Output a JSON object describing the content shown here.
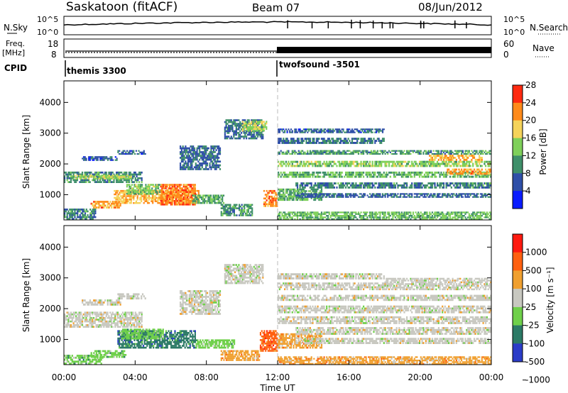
{
  "header": {
    "title": "Saskatoon (fitACF)",
    "beam": "Beam 07",
    "date": "08/Jun/2012"
  },
  "noise_panel": {
    "left_label": "N.Sky",
    "right_label": "N.Search",
    "left_ticks": [
      "10^5",
      "10^0"
    ],
    "right_ticks": [
      "10^5",
      "10^0"
    ]
  },
  "freq_panel": {
    "left_label_1": "Freq.",
    "left_label_2": "[MHz]",
    "right_label": "Nave",
    "left_ticks": [
      "18",
      "8"
    ],
    "right_ticks": [
      "60",
      "0"
    ]
  },
  "cpid_panel": {
    "label": "CPID",
    "programs": [
      "themis 3300",
      "twofsound -3501"
    ]
  },
  "colors": {
    "power": [
      "#0a1cff",
      "#2f4fa8",
      "#3f8f6a",
      "#7fd05a",
      "#f5d35a",
      "#ff8a1a",
      "#ff2a10"
    ],
    "velocity": [
      "#2b3cc8",
      "#2c7a66",
      "#6fd04a",
      "#c8c8c0",
      "#f0a030",
      "#ff6010",
      "#ff1a10"
    ]
  },
  "chart_data": [
    {
      "type": "heatmap",
      "title": "Power",
      "ylabel": "Slant Range [km]",
      "ylim": [
        180,
        4700
      ],
      "yticks": [
        "1000",
        "2000",
        "3000",
        "4000"
      ],
      "xlim": [
        0,
        24
      ],
      "colorbar_label": "Power [dB]",
      "colorbar_ticks": [
        "4",
        "8",
        "12",
        "16",
        "20",
        "24",
        "28"
      ],
      "blobs": [
        {
          "t0": 0.0,
          "t1": 4.4,
          "r0": 1380,
          "r1": 1750,
          "v": 0.32
        },
        {
          "t0": 0.5,
          "t1": 3.8,
          "r0": 1500,
          "r1": 1650,
          "v": 0.55
        },
        {
          "t0": 1.0,
          "t1": 3.0,
          "r0": 2100,
          "r1": 2250,
          "v": 0.18
        },
        {
          "t0": 3.0,
          "t1": 4.6,
          "r0": 2300,
          "r1": 2450,
          "v": 0.2
        },
        {
          "t0": 2.8,
          "t1": 7.6,
          "r0": 700,
          "r1": 1150,
          "v": 0.72
        },
        {
          "t0": 5.4,
          "t1": 7.4,
          "r0": 650,
          "r1": 1350,
          "v": 0.86
        },
        {
          "t0": 3.5,
          "t1": 5.4,
          "r0": 1000,
          "r1": 1350,
          "v": 0.5
        },
        {
          "t0": 1.5,
          "t1": 3.2,
          "r0": 550,
          "r1": 800,
          "v": 0.8
        },
        {
          "t0": 0.0,
          "t1": 1.8,
          "r0": 180,
          "r1": 550,
          "v": 0.3
        },
        {
          "t0": 7.2,
          "t1": 9.0,
          "r0": 700,
          "r1": 1000,
          "v": 0.4
        },
        {
          "t0": 8.8,
          "t1": 10.6,
          "r0": 300,
          "r1": 700,
          "v": 0.35
        },
        {
          "t0": 9.0,
          "t1": 11.2,
          "r0": 2800,
          "r1": 3450,
          "v": 0.25
        },
        {
          "t0": 10.0,
          "t1": 11.4,
          "r0": 3050,
          "r1": 3400,
          "v": 0.55
        },
        {
          "t0": 6.5,
          "t1": 8.8,
          "r0": 1800,
          "r1": 2600,
          "v": 0.22
        },
        {
          "t0": 11.2,
          "t1": 12.0,
          "r0": 600,
          "r1": 1150,
          "v": 0.85
        },
        {
          "t0": 12.0,
          "t1": 14.5,
          "r0": 800,
          "r1": 1200,
          "v": 0.4
        },
        {
          "t0": 12.0,
          "t1": 24.0,
          "r0": 1550,
          "r1": 1750,
          "v": 0.45
        },
        {
          "t0": 12.0,
          "t1": 24.0,
          "r0": 1900,
          "r1": 2100,
          "v": 0.5
        },
        {
          "t0": 12.0,
          "t1": 24.0,
          "r0": 2300,
          "r1": 2450,
          "v": 0.35
        },
        {
          "t0": 12.0,
          "t1": 18.0,
          "r0": 2650,
          "r1": 2850,
          "v": 0.25
        },
        {
          "t0": 12.0,
          "t1": 18.0,
          "r0": 3000,
          "r1": 3150,
          "v": 0.2
        },
        {
          "t0": 13.0,
          "t1": 24.0,
          "r0": 1200,
          "r1": 1400,
          "v": 0.3
        },
        {
          "t0": 13.0,
          "t1": 24.0,
          "r0": 900,
          "r1": 1050,
          "v": 0.22
        },
        {
          "t0": 20.5,
          "t1": 23.5,
          "r0": 2100,
          "r1": 2300,
          "v": 0.75
        },
        {
          "t0": 21.5,
          "t1": 24.0,
          "r0": 1650,
          "r1": 1850,
          "v": 0.8
        },
        {
          "t0": 12.0,
          "t1": 24.0,
          "r0": 180,
          "r1": 450,
          "v": 0.45
        }
      ]
    },
    {
      "type": "heatmap",
      "title": "Velocity",
      "ylabel": "Slant Range [km]",
      "xlabel": "Time UT",
      "ylim": [
        180,
        4700
      ],
      "yticks": [
        "1000",
        "2000",
        "3000",
        "4000"
      ],
      "xlim": [
        0,
        24
      ],
      "xticks": [
        "00:00",
        "04:00",
        "08:00",
        "12:00",
        "16:00",
        "20:00",
        "00:00"
      ],
      "colorbar_label": "Velocity [m s⁻¹]",
      "colorbar_ticks": [
        "1000",
        "500",
        "100",
        "25",
        "-25",
        "-100",
        "-500",
        "-1000"
      ],
      "blobs": [
        {
          "t0": 0.0,
          "t1": 4.4,
          "r0": 1380,
          "r1": 1900,
          "v": 3
        },
        {
          "t0": 1.0,
          "t1": 3.2,
          "r0": 2100,
          "r1": 2300,
          "v": 3
        },
        {
          "t0": 3.0,
          "t1": 4.6,
          "r0": 2300,
          "r1": 2500,
          "v": 3
        },
        {
          "t0": 3.0,
          "t1": 7.4,
          "r0": 700,
          "r1": 1300,
          "v": 1
        },
        {
          "t0": 3.2,
          "t1": 5.6,
          "r0": 1000,
          "r1": 1350,
          "v": 2
        },
        {
          "t0": 0.0,
          "t1": 2.2,
          "r0": 180,
          "r1": 500,
          "v": 2
        },
        {
          "t0": 1.5,
          "t1": 3.5,
          "r0": 400,
          "r1": 650,
          "v": 2
        },
        {
          "t0": 6.5,
          "t1": 8.8,
          "r0": 1800,
          "r1": 2600,
          "v": 3
        },
        {
          "t0": 9.0,
          "t1": 11.2,
          "r0": 2800,
          "r1": 3450,
          "v": 3
        },
        {
          "t0": 7.4,
          "t1": 9.6,
          "r0": 700,
          "r1": 1000,
          "v": 2
        },
        {
          "t0": 8.8,
          "t1": 11.0,
          "r0": 300,
          "r1": 650,
          "v": 4
        },
        {
          "t0": 11.0,
          "t1": 12.0,
          "r0": 600,
          "r1": 1300,
          "v": 5
        },
        {
          "t0": 12.0,
          "t1": 14.5,
          "r0": 700,
          "r1": 1200,
          "v": 4
        },
        {
          "t0": 12.0,
          "t1": 24.0,
          "r0": 1500,
          "r1": 1750,
          "v": 3
        },
        {
          "t0": 12.0,
          "t1": 24.0,
          "r0": 1850,
          "r1": 2100,
          "v": 3
        },
        {
          "t0": 12.0,
          "t1": 24.0,
          "r0": 2250,
          "r1": 2450,
          "v": 3
        },
        {
          "t0": 12.0,
          "t1": 18.0,
          "r0": 2600,
          "r1": 2850,
          "v": 3
        },
        {
          "t0": 12.0,
          "t1": 18.0,
          "r0": 2950,
          "r1": 3150,
          "v": 3
        },
        {
          "t0": 13.0,
          "t1": 24.0,
          "r0": 1150,
          "r1": 1400,
          "v": 3
        },
        {
          "t0": 13.0,
          "t1": 24.0,
          "r0": 850,
          "r1": 1050,
          "v": 3
        },
        {
          "t0": 18.0,
          "t1": 24.0,
          "r0": 2600,
          "r1": 3000,
          "v": 3
        },
        {
          "t0": 12.0,
          "t1": 24.0,
          "r0": 180,
          "r1": 450,
          "v": 4
        }
      ]
    }
  ]
}
